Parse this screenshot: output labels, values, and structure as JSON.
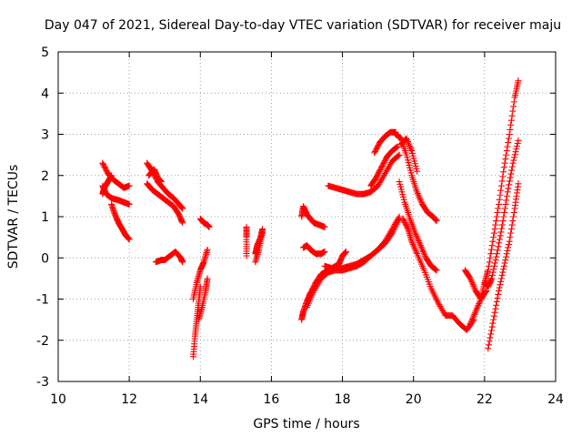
{
  "chart_data": {
    "type": "scatter",
    "title": "Day 047 of 2021, Sidereal Day-to-day VTEC variation (SDTVAR) for receiver maju",
    "xlabel": "GPS time / hours",
    "ylabel": "SDTVAR / TECUs",
    "xlim": [
      10,
      24
    ],
    "ylim": [
      -3,
      5
    ],
    "x_ticks": [
      10,
      12,
      14,
      16,
      18,
      20,
      22,
      24
    ],
    "y_ticks": [
      -3,
      -2,
      -1,
      0,
      1,
      2,
      3,
      4,
      5
    ],
    "x_tick_labels": [
      "10",
      "12",
      "14",
      "16",
      "18",
      "20",
      "22",
      "24"
    ],
    "y_tick_labels": [
      "-3",
      "-2",
      "-1",
      "0",
      "1",
      "2",
      "3",
      "4",
      "5"
    ],
    "grid": true,
    "marker": "+",
    "color": "#ff0000",
    "series": [
      {
        "x": [
          11.25,
          11.4,
          11.55,
          11.7,
          11.85,
          12.0
        ],
        "y": [
          2.3,
          2.05,
          1.9,
          1.8,
          1.7,
          1.75
        ]
      },
      {
        "x": [
          11.25,
          11.35,
          11.5,
          11.7,
          11.85,
          12.0
        ],
        "y": [
          1.75,
          1.55,
          1.45,
          1.4,
          1.35,
          1.3
        ]
      },
      {
        "x": [
          11.25,
          11.3,
          11.4,
          11.5
        ],
        "y": [
          1.55,
          1.7,
          1.85,
          2.0
        ]
      },
      {
        "x": [
          11.5,
          11.6,
          11.7,
          11.8,
          11.9,
          12.0
        ],
        "y": [
          1.3,
          1.05,
          0.85,
          0.7,
          0.55,
          0.45
        ]
      },
      {
        "x": [
          12.5,
          12.65,
          12.8,
          12.95,
          13.1,
          13.25,
          13.4,
          13.5
        ],
        "y": [
          2.3,
          2.1,
          1.85,
          1.7,
          1.55,
          1.45,
          1.3,
          1.2
        ]
      },
      {
        "x": [
          12.5,
          12.65,
          12.8,
          12.95,
          13.1,
          13.25,
          13.4,
          13.5
        ],
        "y": [
          1.8,
          1.65,
          1.55,
          1.45,
          1.35,
          1.25,
          1.05,
          0.85
        ]
      },
      {
        "x": [
          12.55,
          12.7,
          12.8,
          12.9
        ],
        "y": [
          2.0,
          2.15,
          1.95,
          1.85
        ]
      },
      {
        "x": [
          12.75,
          12.9,
          13.0,
          13.15,
          13.3,
          13.45,
          13.5
        ],
        "y": [
          -0.1,
          -0.05,
          -0.05,
          0.05,
          0.15,
          0.0,
          -0.1
        ]
      },
      {
        "x": [
          13.8,
          13.85,
          13.9,
          13.95,
          14.0
        ],
        "y": [
          -2.4,
          -1.9,
          -1.5,
          -1.1,
          -0.7
        ]
      },
      {
        "x": [
          13.8,
          13.9,
          14.0,
          14.1,
          14.2
        ],
        "y": [
          -1.0,
          -0.6,
          -0.3,
          -0.1,
          0.2
        ]
      },
      {
        "x": [
          13.95,
          14.05,
          14.15,
          14.2
        ],
        "y": [
          -1.5,
          -1.2,
          -0.8,
          -0.5
        ]
      },
      {
        "x": [
          14.0,
          14.1,
          14.2,
          14.25
        ],
        "y": [
          0.95,
          0.85,
          0.8,
          0.75
        ]
      },
      {
        "x": [
          15.3,
          15.3,
          15.3
        ],
        "y": [
          0.05,
          0.5,
          0.75
        ]
      },
      {
        "x": [
          15.55,
          15.6,
          15.7,
          15.75
        ],
        "y": [
          0.1,
          0.3,
          0.5,
          0.7
        ]
      },
      {
        "x": [
          15.55,
          15.65,
          15.75
        ],
        "y": [
          -0.1,
          0.2,
          0.6
        ]
      },
      {
        "x": [
          16.85,
          16.9,
          17.0,
          17.1,
          17.2,
          17.35,
          17.5
        ],
        "y": [
          1.0,
          1.25,
          1.05,
          0.95,
          0.85,
          0.8,
          0.75
        ]
      },
      {
        "x": [
          16.9,
          17.0,
          17.1,
          17.25,
          17.4,
          17.5
        ],
        "y": [
          0.25,
          0.3,
          0.2,
          0.1,
          0.1,
          0.15
        ]
      },
      {
        "x": [
          16.85,
          16.9,
          17.0,
          17.1,
          17.25,
          17.4,
          17.6,
          17.8,
          18.0,
          18.2,
          18.4,
          18.6,
          18.8,
          19.0,
          19.2,
          19.4,
          19.6
        ],
        "y": [
          -1.5,
          -1.3,
          -1.05,
          -0.85,
          -0.6,
          -0.4,
          -0.3,
          -0.25,
          -0.25,
          -0.2,
          -0.15,
          -0.05,
          0.05,
          0.2,
          0.35,
          0.6,
          0.95
        ]
      },
      {
        "x": [
          17.0,
          17.2,
          17.4,
          17.6,
          17.8,
          18.0,
          18.2,
          18.4,
          18.6,
          18.8,
          19.0,
          19.2,
          19.4,
          19.6
        ],
        "y": [
          -1.2,
          -0.8,
          -0.5,
          -0.35,
          -0.3,
          -0.3,
          -0.25,
          -0.2,
          -0.1,
          0.05,
          0.2,
          0.4,
          0.7,
          1.0
        ]
      },
      {
        "x": [
          17.5,
          17.7,
          17.9,
          18.0,
          18.1
        ],
        "y": [
          -0.2,
          -0.25,
          -0.15,
          0.05,
          0.15
        ]
      },
      {
        "x": [
          17.6,
          17.8,
          18.0,
          18.2,
          18.4,
          18.6,
          18.8,
          19.0,
          19.2,
          19.4,
          19.6
        ],
        "y": [
          1.75,
          1.7,
          1.65,
          1.6,
          1.55,
          1.55,
          1.6,
          1.75,
          2.05,
          2.35,
          2.5
        ]
      },
      {
        "x": [
          18.8,
          18.95,
          19.1,
          19.25,
          19.4,
          19.55
        ],
        "y": [
          1.75,
          1.95,
          2.2,
          2.45,
          2.6,
          2.7
        ]
      },
      {
        "x": [
          18.9,
          19.05,
          19.2,
          19.35,
          19.5
        ],
        "y": [
          2.55,
          2.8,
          2.95,
          3.05,
          3.05
        ]
      },
      {
        "x": [
          19.5,
          19.65,
          19.8,
          19.95,
          20.1,
          20.25,
          20.4,
          20.55,
          20.65
        ],
        "y": [
          3.0,
          2.9,
          2.5,
          2.0,
          1.6,
          1.3,
          1.1,
          1.0,
          0.9
        ]
      },
      {
        "x": [
          19.6,
          19.75,
          19.9,
          20.05,
          20.2,
          20.35,
          20.5,
          20.65
        ],
        "y": [
          1.85,
          1.35,
          0.95,
          0.6,
          0.3,
          0.0,
          -0.2,
          -0.3
        ]
      },
      {
        "x": [
          19.7,
          19.85,
          19.95,
          20.1,
          20.3,
          20.5,
          20.7,
          20.9,
          21.1,
          21.3,
          21.5,
          21.7
        ],
        "y": [
          0.95,
          0.7,
          0.4,
          0.1,
          -0.3,
          -0.75,
          -1.1,
          -1.4,
          -1.4,
          -1.6,
          -1.75,
          -1.5
        ]
      },
      {
        "x": [
          19.65,
          19.8,
          19.95,
          20.1
        ],
        "y": [
          2.75,
          2.9,
          2.6,
          2.1
        ]
      },
      {
        "x": [
          21.45,
          21.6,
          21.75,
          21.9,
          22.05
        ],
        "y": [
          -0.3,
          -0.5,
          -0.8,
          -1.0,
          -0.8
        ]
      },
      {
        "x": [
          21.6,
          21.75,
          21.9,
          22.0,
          22.1,
          22.25,
          22.4,
          22.55,
          22.7,
          22.85,
          22.95
        ],
        "y": [
          -1.6,
          -1.3,
          -1.0,
          -0.6,
          -0.3,
          0.5,
          1.3,
          2.2,
          3.0,
          3.9,
          4.3
        ]
      },
      {
        "x": [
          22.0,
          22.1,
          22.2,
          22.35,
          22.5,
          22.65,
          22.8,
          22.95
        ],
        "y": [
          -0.6,
          -0.7,
          -0.5,
          0.1,
          0.8,
          1.6,
          2.3,
          2.85
        ]
      },
      {
        "x": [
          22.1,
          22.25,
          22.4,
          22.55,
          22.7,
          22.85,
          22.95
        ],
        "y": [
          -2.2,
          -1.5,
          -0.8,
          -0.2,
          0.4,
          1.2,
          1.8
        ]
      }
    ]
  }
}
